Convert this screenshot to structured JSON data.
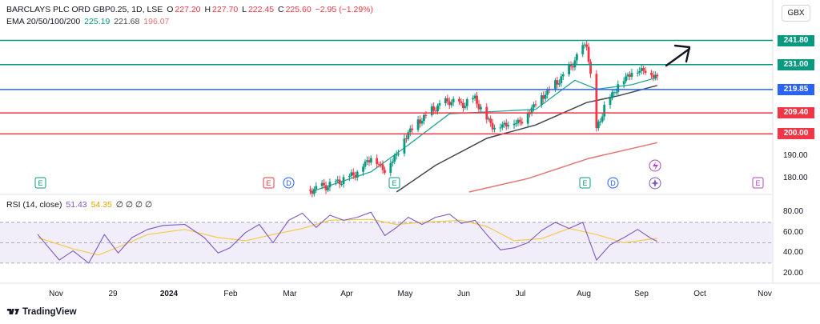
{
  "header": {
    "symbol": "BARCLAYS PLC ORD GBP0.25, 1D, LSE",
    "open_label": "O",
    "open": "227.20",
    "high_label": "H",
    "high": "227.70",
    "low_label": "L",
    "low": "222.45",
    "close_label": "C",
    "close": "225.60",
    "change": "−2.95 (−1.29%)",
    "ema_label": "EMA 20/50/100/200",
    "ema20": "225.19",
    "ema50": "221.68",
    "ema100": "196.07"
  },
  "currency": "GBX",
  "rsi_header": {
    "label": "RSI (14, close)",
    "rsi": "51.43",
    "ma": "54.35",
    "extra": "∅ ∅ ∅ ∅"
  },
  "branding": "TradingView",
  "colors": {
    "up": "#089981",
    "down": "#f23645",
    "ema20": "#26a69a",
    "ema50": "#434651",
    "ema100": "#e57373",
    "green_level": "#089981",
    "blue_level": "#2962ff",
    "red_level": "#f23645",
    "rsi": "#7e57c2",
    "rsi_ma": "#f7c948"
  },
  "chart_data": [
    {
      "type": "candlestick",
      "title": "BARCLAYS PLC ORD GBP0.25, 1D, LSE",
      "ylim": [
        174,
        247
      ],
      "y_ticks": [
        180,
        190,
        200,
        209.4,
        219.85,
        231,
        241.8
      ],
      "y_tick_labels": [
        "180.00",
        "190.00",
        "200.00",
        "209.40",
        "219.85",
        "231.00",
        "241.80"
      ],
      "x_tick_labels": [
        "Nov",
        "29",
        "2024",
        "Feb",
        "Mar",
        "Apr",
        "May",
        "Jun",
        "Jul",
        "Aug",
        "Sep",
        "Oct",
        "Nov"
      ],
      "horizontal_levels": [
        {
          "value": 241.8,
          "color": "green"
        },
        {
          "value": 231.0,
          "color": "green"
        },
        {
          "value": 219.85,
          "color": "blue"
        },
        {
          "value": 209.4,
          "color": "red"
        },
        {
          "value": 200.0,
          "color": "red"
        }
      ],
      "price_path": [
        [
          "2024-03-12",
          175
        ],
        [
          "2024-03-25",
          178
        ],
        [
          "2024-04-05",
          183
        ],
        [
          "2024-04-12",
          190
        ],
        [
          "2024-04-19",
          184
        ],
        [
          "2024-04-25",
          191
        ],
        [
          "2024-05-01",
          201
        ],
        [
          "2024-05-08",
          207
        ],
        [
          "2024-05-15",
          212
        ],
        [
          "2024-05-22",
          215
        ],
        [
          "2024-05-28",
          213
        ],
        [
          "2024-06-04",
          216
        ],
        [
          "2024-06-10",
          207
        ],
        [
          "2024-06-14",
          203
        ],
        [
          "2024-06-21",
          205
        ],
        [
          "2024-06-28",
          206
        ],
        [
          "2024-07-05",
          214
        ],
        [
          "2024-07-12",
          220
        ],
        [
          "2024-07-19",
          226
        ],
        [
          "2024-07-25",
          233
        ],
        [
          "2024-07-31",
          241
        ],
        [
          "2024-08-05",
          202
        ],
        [
          "2024-08-09",
          212
        ],
        [
          "2024-08-16",
          222
        ],
        [
          "2024-08-23",
          228
        ],
        [
          "2024-08-29",
          229
        ],
        [
          "2024-09-05",
          225.6
        ]
      ],
      "ema_series": [
        {
          "name": "EMA 20",
          "values": [
            [
              "2024-03-12",
              174
            ],
            [
              "2024-04-12",
              183
            ],
            [
              "2024-05-01",
              195
            ],
            [
              "2024-05-22",
              209
            ],
            [
              "2024-06-14",
              210
            ],
            [
              "2024-07-05",
              211
            ],
            [
              "2024-07-25",
              224
            ],
            [
              "2024-08-05",
              220
            ],
            [
              "2024-08-23",
              222
            ],
            [
              "2024-09-05",
              225.19
            ]
          ]
        },
        {
          "name": "EMA 50",
          "values": [
            [
              "2024-04-25",
              174
            ],
            [
              "2024-05-15",
              186
            ],
            [
              "2024-06-10",
              198
            ],
            [
              "2024-07-05",
              204
            ],
            [
              "2024-07-31",
              214
            ],
            [
              "2024-08-16",
              217
            ],
            [
              "2024-09-05",
              221.68
            ]
          ]
        },
        {
          "name": "EMA 100",
          "values": [
            [
              "2024-06-01",
              174
            ],
            [
              "2024-07-01",
              180
            ],
            [
              "2024-08-01",
              189
            ],
            [
              "2024-09-05",
              196.07
            ]
          ]
        }
      ],
      "event_markers": [
        "E",
        "E",
        "D",
        "E",
        "E",
        "D",
        "E"
      ]
    },
    {
      "type": "line",
      "title": "RSI (14, close)",
      "ylim": [
        15,
        88
      ],
      "y_ticks": [
        20,
        40,
        60,
        80
      ],
      "y_tick_labels": [
        "20.00",
        "40.00",
        "60.00",
        "80.00"
      ],
      "band": [
        30,
        70
      ],
      "series": [
        {
          "name": "RSI",
          "values": [
            [
              "2023-10-25",
              58
            ],
            [
              "2023-11-05",
              33
            ],
            [
              "2023-11-12",
              42
            ],
            [
              "2023-11-20",
              30
            ],
            [
              "2023-11-28",
              58
            ],
            [
              "2023-12-05",
              40
            ],
            [
              "2023-12-12",
              55
            ],
            [
              "2023-12-20",
              63
            ],
            [
              "2023-12-28",
              67
            ],
            [
              "2024-01-08",
              68
            ],
            [
              "2024-01-18",
              55
            ],
            [
              "2024-01-25",
              40
            ],
            [
              "2024-01-31",
              45
            ],
            [
              "2024-02-08",
              60
            ],
            [
              "2024-02-15",
              68
            ],
            [
              "2024-02-22",
              50
            ],
            [
              "2024-03-01",
              72
            ],
            [
              "2024-03-08",
              79
            ],
            [
              "2024-03-15",
              65
            ],
            [
              "2024-03-22",
              77
            ],
            [
              "2024-03-29",
              72
            ],
            [
              "2024-04-05",
              75
            ],
            [
              "2024-04-12",
              80
            ],
            [
              "2024-04-19",
              57
            ],
            [
              "2024-04-25",
              65
            ],
            [
              "2024-05-01",
              75
            ],
            [
              "2024-05-08",
              68
            ],
            [
              "2024-05-15",
              75
            ],
            [
              "2024-05-22",
              78
            ],
            [
              "2024-05-28",
              69
            ],
            [
              "2024-06-04",
              72
            ],
            [
              "2024-06-10",
              58
            ],
            [
              "2024-06-17",
              43
            ],
            [
              "2024-06-24",
              45
            ],
            [
              "2024-07-01",
              50
            ],
            [
              "2024-07-08",
              62
            ],
            [
              "2024-07-15",
              70
            ],
            [
              "2024-07-22",
              64
            ],
            [
              "2024-07-29",
              70
            ],
            [
              "2024-08-05",
              33
            ],
            [
              "2024-08-12",
              48
            ],
            [
              "2024-08-19",
              55
            ],
            [
              "2024-08-26",
              63
            ],
            [
              "2024-09-02",
              54
            ],
            [
              "2024-09-05",
              51.43
            ]
          ]
        },
        {
          "name": "RSI MA",
          "values": [
            [
              "2023-10-25",
              55
            ],
            [
              "2023-11-12",
              44
            ],
            [
              "2023-11-25",
              38
            ],
            [
              "2023-12-08",
              48
            ],
            [
              "2023-12-20",
              58
            ],
            [
              "2024-01-08",
              63
            ],
            [
              "2024-01-25",
              55
            ],
            [
              "2024-02-08",
              52
            ],
            [
              "2024-02-22",
              58
            ],
            [
              "2024-03-08",
              64
            ],
            [
              "2024-03-22",
              72
            ],
            [
              "2024-04-12",
              73
            ],
            [
              "2024-04-25",
              68
            ],
            [
              "2024-05-08",
              70
            ],
            [
              "2024-05-28",
              72
            ],
            [
              "2024-06-10",
              66
            ],
            [
              "2024-06-24",
              52
            ],
            [
              "2024-07-08",
              54
            ],
            [
              "2024-07-22",
              64
            ],
            [
              "2024-08-05",
              58
            ],
            [
              "2024-08-19",
              50
            ],
            [
              "2024-09-05",
              54.35
            ]
          ]
        }
      ]
    }
  ]
}
